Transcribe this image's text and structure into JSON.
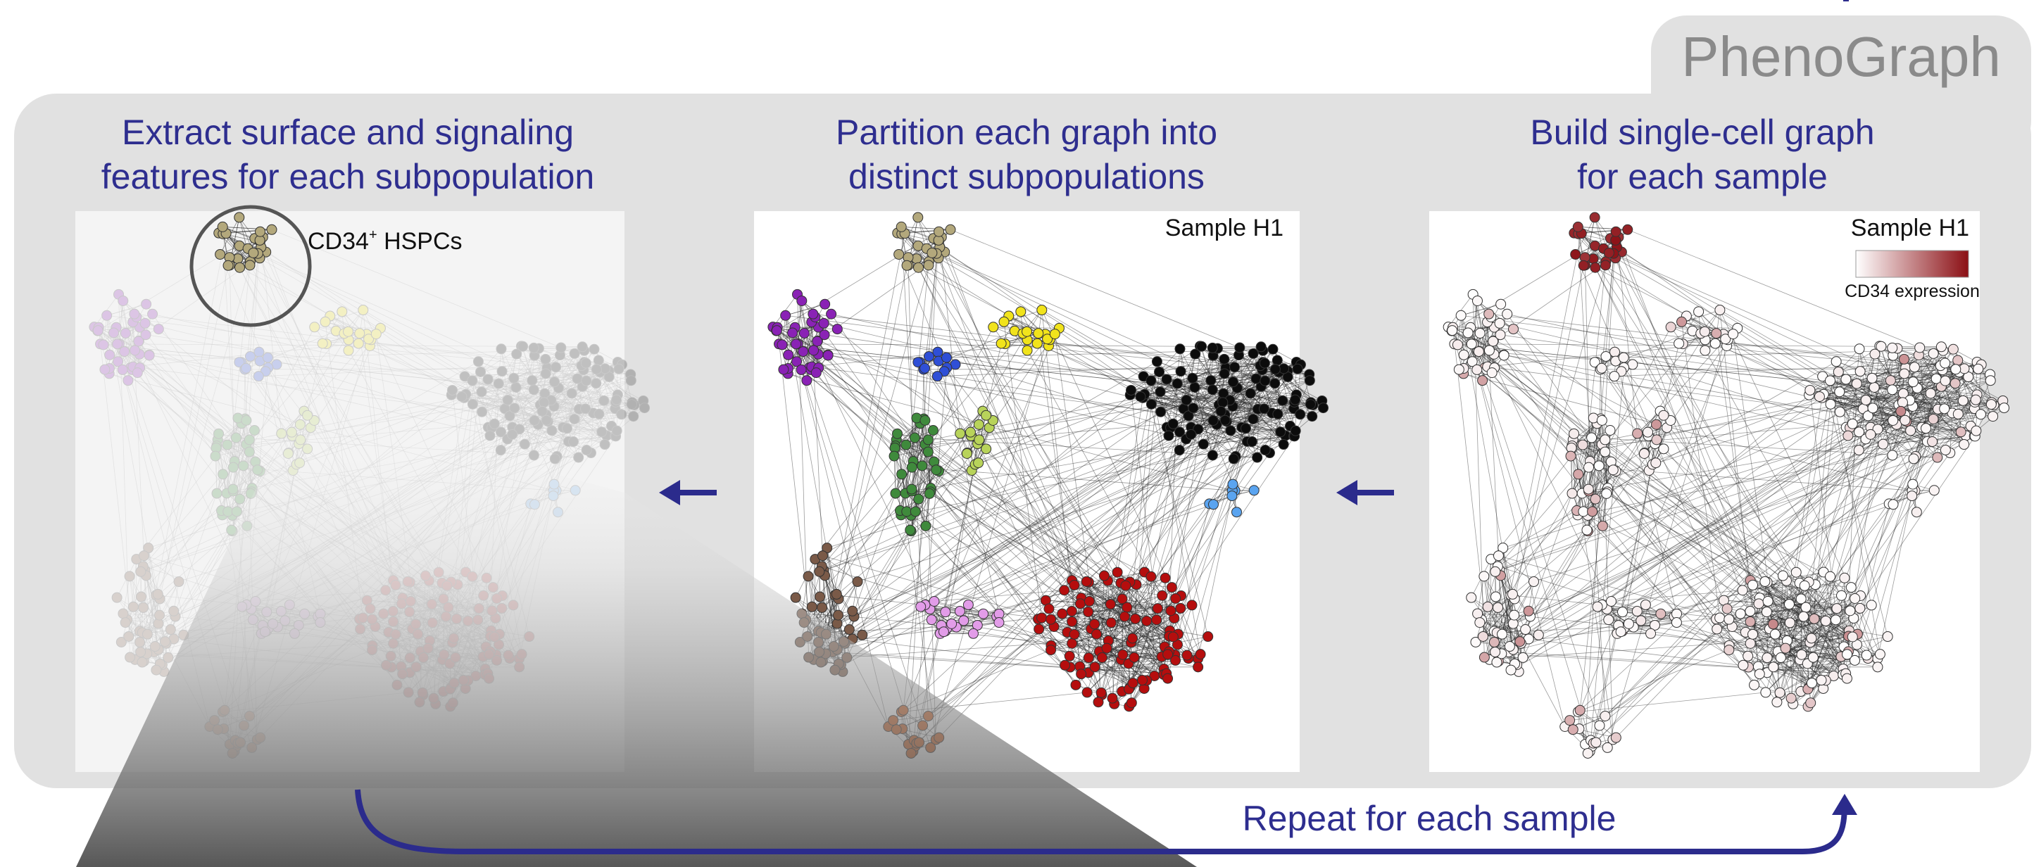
{
  "brand": {
    "label": "PhenoGraph"
  },
  "panels": {
    "extract": {
      "title_line1": "Extract surface and signaling",
      "title_line2": "features for each subpopulation",
      "callout_label": "CD34",
      "callout_sup": "+",
      "callout_suffix": " HSPCs"
    },
    "partition": {
      "title_line1": "Partition each graph into",
      "title_line2": "distinct subpopulations",
      "sample_label": "Sample H1"
    },
    "build": {
      "title_line1": "Build single-cell graph",
      "title_line2": "for each sample",
      "sample_label": "Sample H1",
      "colorbar_label": "CD34 expression"
    }
  },
  "loop": {
    "label": "Repeat for each sample"
  },
  "colors": {
    "title": "#2e2e8f",
    "arrow": "#2b2b8c",
    "brand_text": "#8a8a8a",
    "container": "#e1e1e1",
    "colorbar_low": "#ffffff",
    "colorbar_high": "#8b0f14"
  },
  "clusters": [
    {
      "name": "CD34+ HSPCs",
      "color": "#b3a87c"
    },
    {
      "name": "purple",
      "color": "#8a22b5"
    },
    {
      "name": "blue",
      "color": "#2f4fd6"
    },
    {
      "name": "yellow",
      "color": "#f1e31b"
    },
    {
      "name": "black",
      "color": "#0c0c0c"
    },
    {
      "name": "yellow-green",
      "color": "#b8d35a"
    },
    {
      "name": "green",
      "color": "#3f8a3c"
    },
    {
      "name": "light-blue",
      "color": "#5aa4f0"
    },
    {
      "name": "brown",
      "color": "#7a5a48"
    },
    {
      "name": "pink",
      "color": "#e29ce8"
    },
    {
      "name": "red",
      "color": "#b50e0e"
    },
    {
      "name": "orange",
      "color": "#d06428"
    }
  ]
}
